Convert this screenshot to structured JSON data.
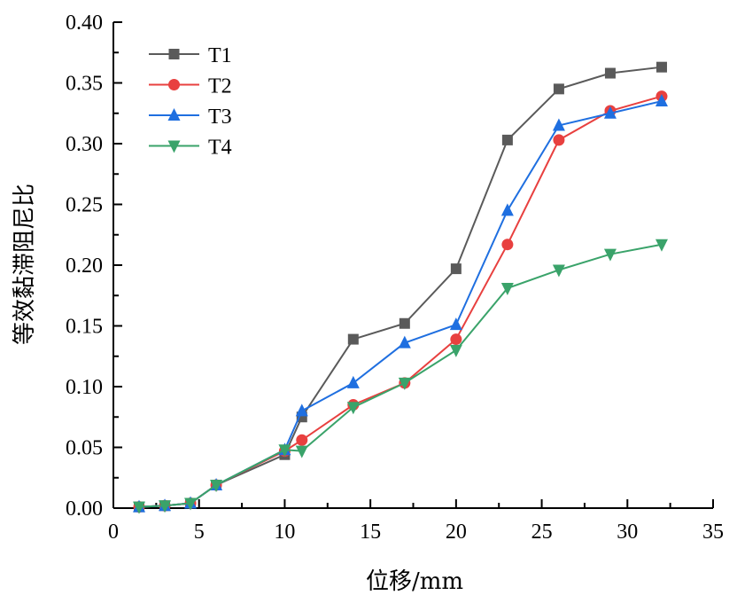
{
  "chart_data": {
    "type": "line",
    "title": "",
    "xlabel": "位移/mm",
    "ylabel": "等效黏滞阻尼比",
    "xlim": [
      0,
      35
    ],
    "ylim": [
      0,
      0.4
    ],
    "xticks": [
      "0",
      "5",
      "10",
      "15",
      "20",
      "25",
      "30",
      "35"
    ],
    "yticks": [
      "0.00",
      "0.05",
      "0.10",
      "0.15",
      "0.20",
      "0.25",
      "0.30",
      "0.35",
      "0.40"
    ],
    "grid": false,
    "legend_position": "top-left",
    "x": [
      1.5,
      3,
      4.5,
      6,
      10,
      11,
      14,
      17,
      20,
      23,
      26,
      29,
      32
    ],
    "series": [
      {
        "name": "T1",
        "marker": "square",
        "color": "#5a5a5a",
        "values": [
          0.001,
          0.002,
          0.004,
          0.019,
          0.044,
          0.075,
          0.139,
          0.152,
          0.197,
          0.303,
          0.345,
          0.358,
          0.363
        ]
      },
      {
        "name": "T2",
        "marker": "circle",
        "color": "#e8403f",
        "values": [
          0.001,
          0.002,
          0.004,
          0.019,
          0.047,
          0.056,
          0.085,
          0.103,
          0.139,
          0.217,
          0.303,
          0.327,
          0.339
        ]
      },
      {
        "name": "T3",
        "marker": "triangle-up",
        "color": "#1f6fe0",
        "values": [
          0.001,
          0.002,
          0.004,
          0.019,
          0.048,
          0.08,
          0.103,
          0.136,
          0.151,
          0.245,
          0.315,
          0.325,
          0.335
        ]
      },
      {
        "name": "T4",
        "marker": "triangle-down",
        "color": "#3aa36a",
        "values": [
          0.001,
          0.002,
          0.004,
          0.019,
          0.048,
          0.047,
          0.083,
          0.103,
          0.13,
          0.181,
          0.196,
          0.209,
          0.217
        ]
      }
    ]
  }
}
